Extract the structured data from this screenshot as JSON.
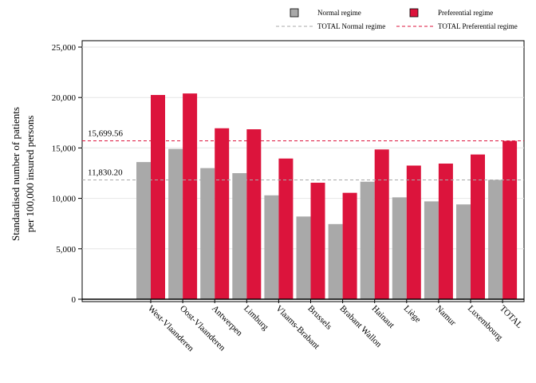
{
  "chart_data": {
    "type": "bar",
    "ylabel_line1": "Standardised number of patients",
    "ylabel_line2": "per 100,000 insured persons",
    "ylim": [
      0,
      25000
    ],
    "yticks": [
      0,
      5000,
      10000,
      15000,
      20000,
      25000
    ],
    "ytick_labels": [
      "0",
      "5,000",
      "10,000",
      "15,000",
      "20,000",
      "25,000"
    ],
    "grid": true,
    "legend_position": "top",
    "categories": [
      "West-Vlaanderen",
      "Oost-Vlaanderen",
      "Antwerpen",
      "Limburg",
      "Vlaams-Brabant",
      "Brussels",
      "Brabant Wallon",
      "Hainaut",
      "Liège",
      "Namur",
      "Luxembourg",
      "TOTAL"
    ],
    "series": [
      {
        "name": "Normal regime",
        "color": "#a9a9a9",
        "values": [
          13600,
          14900,
          13000,
          12500,
          10300,
          8200,
          7450,
          11650,
          10100,
          9700,
          9400,
          11830.2
        ]
      },
      {
        "name": "Preferential regime",
        "color": "#dc143c",
        "values": [
          20250,
          20400,
          16950,
          16850,
          13950,
          11550,
          10550,
          14850,
          13250,
          13450,
          14350,
          15699.56
        ]
      }
    ],
    "reference_lines": [
      {
        "name": "TOTAL Normal regime",
        "value": 11830.2,
        "label": "11,830.20",
        "color": "#a9a9a9"
      },
      {
        "name": "TOTAL Preferential regime",
        "value": 15699.56,
        "label": "15,699.56",
        "color": "#dc143c"
      }
    ]
  }
}
